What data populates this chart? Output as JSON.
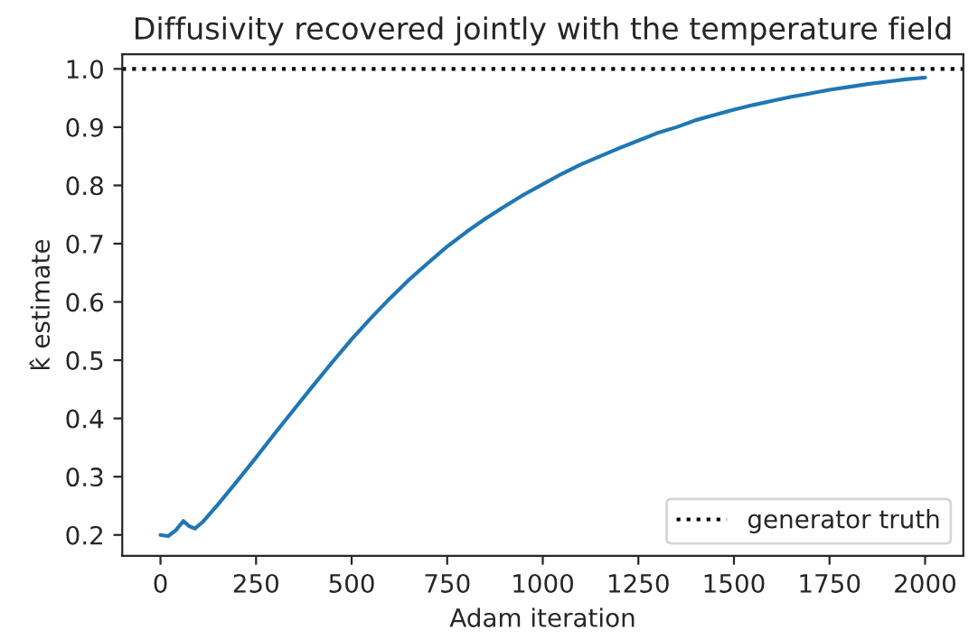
{
  "chart_data": {
    "type": "line",
    "title": "Diffusivity recovered jointly with the temperature field",
    "xlabel": "Adam iteration",
    "ylabel": "k̂ estimate",
    "x": [
      0,
      20,
      40,
      60,
      75,
      90,
      110,
      150,
      200,
      250,
      300,
      350,
      400,
      450,
      500,
      550,
      600,
      650,
      700,
      750,
      800,
      850,
      900,
      950,
      1000,
      1050,
      1100,
      1150,
      1200,
      1250,
      1300,
      1350,
      1400,
      1450,
      1500,
      1550,
      1600,
      1650,
      1700,
      1750,
      1800,
      1850,
      1900,
      1950,
      2000
    ],
    "series": [
      {
        "color": "#1f77b4",
        "values": [
          0.2,
          0.198,
          0.208,
          0.224,
          0.215,
          0.211,
          0.222,
          0.252,
          0.292,
          0.333,
          0.375,
          0.416,
          0.457,
          0.497,
          0.536,
          0.572,
          0.606,
          0.638,
          0.667,
          0.695,
          0.72,
          0.743,
          0.764,
          0.784,
          0.802,
          0.82,
          0.836,
          0.85,
          0.864,
          0.877,
          0.89,
          0.9,
          0.912,
          0.921,
          0.93,
          0.938,
          0.945,
          0.952,
          0.958,
          0.964,
          0.969,
          0.974,
          0.978,
          0.982,
          0.985
        ]
      }
    ],
    "ref_lines": [
      {
        "axis": "y",
        "value": 1.0,
        "label": "generator truth",
        "color": "#000000",
        "line_style": "dotted"
      }
    ],
    "xlim": [
      -100,
      2100
    ],
    "ylim": [
      0.164,
      1.025
    ],
    "xticks": [
      0,
      250,
      500,
      750,
      1000,
      1250,
      1500,
      1750,
      2000
    ],
    "yticks": [
      {
        "value": 0.2,
        "label": "0.2"
      },
      {
        "value": 0.3,
        "label": "0.3"
      },
      {
        "value": 0.4,
        "label": "0.4"
      },
      {
        "value": 0.5,
        "label": "0.5"
      },
      {
        "value": 0.6,
        "label": "0.6"
      },
      {
        "value": 0.7,
        "label": "0.7"
      },
      {
        "value": 0.8,
        "label": "0.8"
      },
      {
        "value": 0.9,
        "label": "0.9"
      },
      {
        "value": 1.0,
        "label": "1.0"
      }
    ],
    "legend": "lower right",
    "grid": false,
    "line_style": "solid",
    "marker": "none"
  }
}
